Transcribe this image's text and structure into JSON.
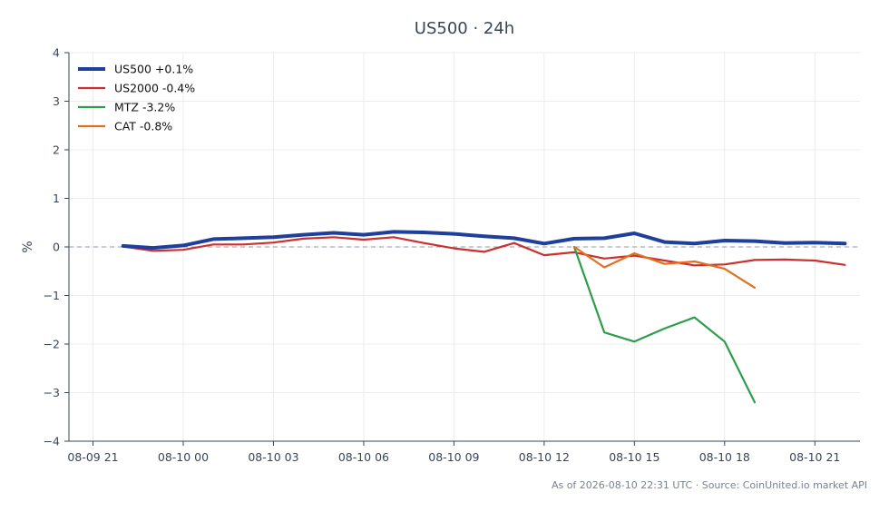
{
  "chart_data": {
    "type": "line",
    "title": "US500 · 24h",
    "xlabel": "",
    "ylabel": "%",
    "ylim": [
      -4,
      4
    ],
    "yticks": [
      4,
      3,
      2,
      1,
      0,
      -1,
      -2,
      -3,
      -4
    ],
    "ytick_labels": [
      "4",
      "3",
      "2",
      "1",
      "0",
      "−1",
      "−2",
      "−3",
      "−4"
    ],
    "xlim": [
      "2026-08-09 20:12",
      "2026-08-10 22:30"
    ],
    "xticks": [
      "2026-08-09 21:00",
      "2026-08-10 00:00",
      "2026-08-10 03:00",
      "2026-08-10 06:00",
      "2026-08-10 09:00",
      "2026-08-10 12:00",
      "2026-08-10 15:00",
      "2026-08-10 18:00",
      "2026-08-10 21:00"
    ],
    "xtick_labels": [
      "08-09 21",
      "08-10 00",
      "08-10 03",
      "08-10 06",
      "08-10 09",
      "08-10 12",
      "08-10 15",
      "08-10 18",
      "08-10 21"
    ],
    "grid": true,
    "zero_line": true,
    "legend_position": "top-left",
    "series": [
      {
        "name": "US500 +0.1%",
        "color": "#1f3f9c",
        "emphasis": true,
        "x": [
          "2026-08-09 22:00",
          "2026-08-09 23:00",
          "2026-08-10 00:00",
          "2026-08-10 01:00",
          "2026-08-10 02:00",
          "2026-08-10 03:00",
          "2026-08-10 04:00",
          "2026-08-10 05:00",
          "2026-08-10 06:00",
          "2026-08-10 07:00",
          "2026-08-10 08:00",
          "2026-08-10 09:00",
          "2026-08-10 10:00",
          "2026-08-10 11:00",
          "2026-08-10 12:00",
          "2026-08-10 13:00",
          "2026-08-10 14:00",
          "2026-08-10 15:00",
          "2026-08-10 16:00",
          "2026-08-10 17:00",
          "2026-08-10 18:00",
          "2026-08-10 19:00",
          "2026-08-10 20:00",
          "2026-08-10 21:00",
          "2026-08-10 22:00"
        ],
        "values": [
          0.02,
          -0.02,
          0.03,
          0.16,
          0.18,
          0.2,
          0.25,
          0.29,
          0.25,
          0.31,
          0.3,
          0.27,
          0.22,
          0.18,
          0.07,
          0.17,
          0.18,
          0.28,
          0.1,
          0.07,
          0.13,
          0.12,
          0.08,
          0.09,
          0.07
        ]
      },
      {
        "name": "US2000 -0.4%",
        "color": "#cc2f2f",
        "x": [
          "2026-08-09 22:00",
          "2026-08-09 23:00",
          "2026-08-10 00:00",
          "2026-08-10 01:00",
          "2026-08-10 02:00",
          "2026-08-10 03:00",
          "2026-08-10 04:00",
          "2026-08-10 05:00",
          "2026-08-10 06:00",
          "2026-08-10 07:00",
          "2026-08-10 08:00",
          "2026-08-10 09:00",
          "2026-08-10 10:00",
          "2026-08-10 11:00",
          "2026-08-10 12:00",
          "2026-08-10 13:00",
          "2026-08-10 14:00",
          "2026-08-10 15:00",
          "2026-08-10 16:00",
          "2026-08-10 17:00",
          "2026-08-10 18:00",
          "2026-08-10 19:00",
          "2026-08-10 20:00",
          "2026-08-10 21:00",
          "2026-08-10 22:00"
        ],
        "values": [
          0.01,
          -0.08,
          -0.06,
          0.05,
          0.05,
          0.09,
          0.17,
          0.2,
          0.15,
          0.2,
          0.08,
          -0.03,
          -0.1,
          0.08,
          -0.17,
          -0.11,
          -0.24,
          -0.18,
          -0.28,
          -0.38,
          -0.36,
          -0.27,
          -0.26,
          -0.28,
          -0.37
        ]
      },
      {
        "name": "MTZ -3.2%",
        "color": "#2c9e4b",
        "x": [
          "2026-08-10 13:00",
          "2026-08-10 14:00",
          "2026-08-10 15:00",
          "2026-08-10 16:00",
          "2026-08-10 17:00",
          "2026-08-10 18:00",
          "2026-08-10 19:00"
        ],
        "values": [
          0.0,
          -1.76,
          -1.95,
          -1.68,
          -1.45,
          -1.95,
          -3.2
        ]
      },
      {
        "name": "CAT -0.8%",
        "color": "#e0701f",
        "x": [
          "2026-08-10 13:00",
          "2026-08-10 14:00",
          "2026-08-10 15:00",
          "2026-08-10 16:00",
          "2026-08-10 17:00",
          "2026-08-10 18:00",
          "2026-08-10 19:00"
        ],
        "values": [
          0.0,
          -0.42,
          -0.13,
          -0.35,
          -0.3,
          -0.45,
          -0.84
        ]
      }
    ]
  },
  "footer": "As of 2026-08-10 22:31 UTC · Source: CoinUnited.io market API"
}
